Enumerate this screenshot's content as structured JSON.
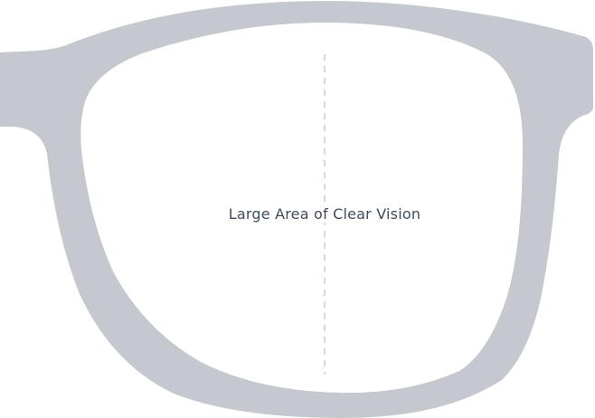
{
  "diagram": {
    "lens_label": "Large Area of Clear Vision"
  },
  "colors": {
    "frame": "#c5c8ce",
    "lens": "#ffffff",
    "center_line": "#c9cbd0",
    "label_text": "#3f4c5c"
  }
}
